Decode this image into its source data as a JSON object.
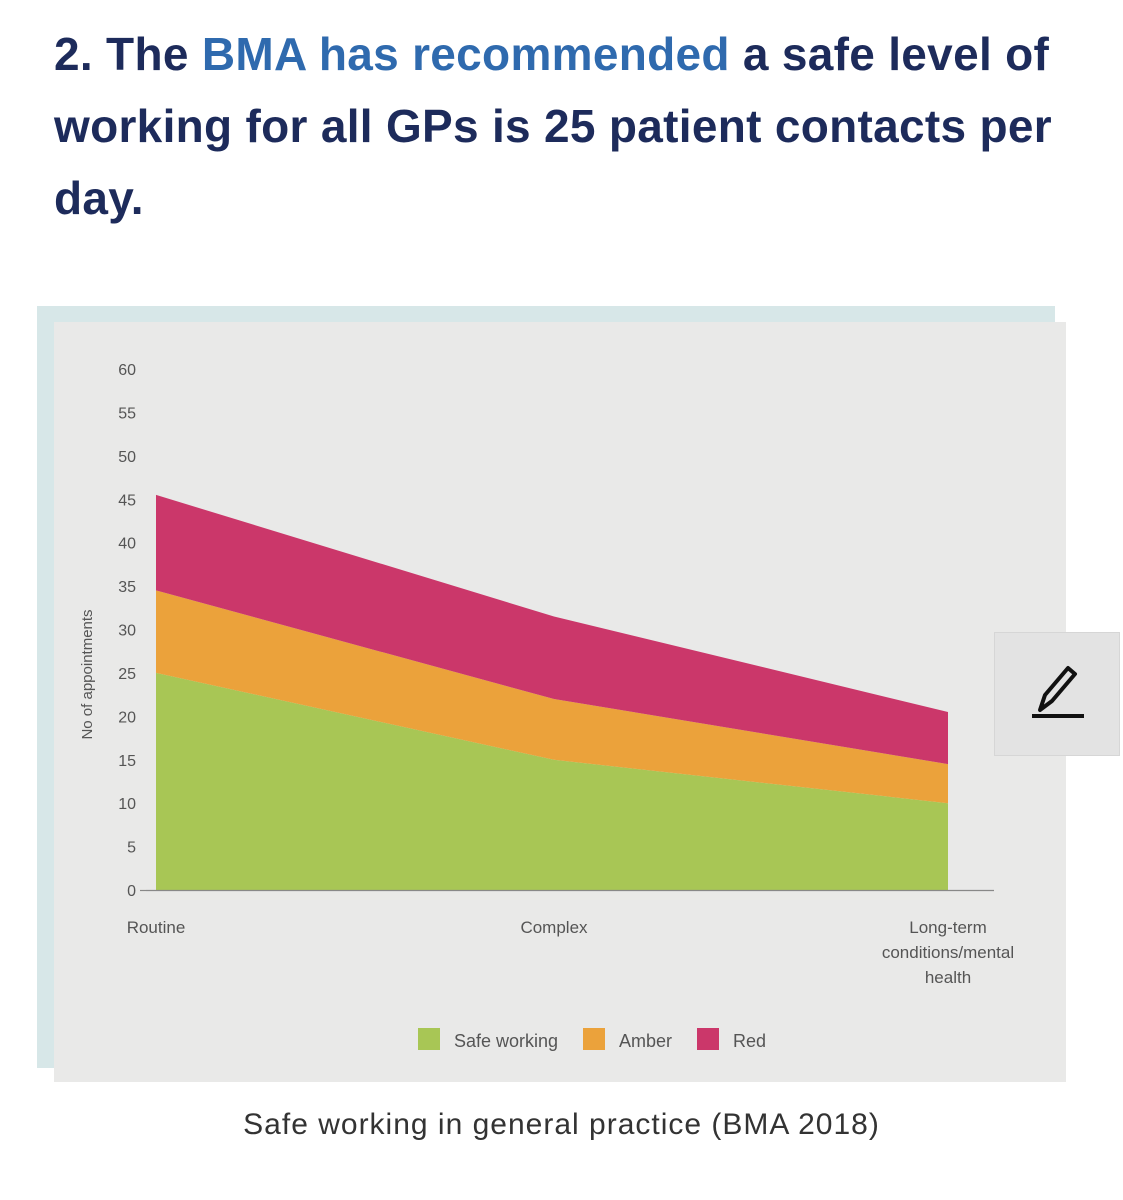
{
  "heading": {
    "prefix": "2. The ",
    "highlight": "BMA has recommended",
    "rest": " a safe level of working for all GPs is 25 patient contacts per day."
  },
  "chart_data": {
    "type": "area",
    "stacked": true,
    "categories": [
      "Routine",
      "Complex",
      "Long-term conditions/mental health"
    ],
    "x_label_lines": [
      [
        "Routine"
      ],
      [
        "Complex"
      ],
      [
        "Long-term",
        "conditions/mental",
        "health"
      ]
    ],
    "ylabel": "No of appointments",
    "ylim": [
      0,
      60
    ],
    "yticks": [
      0,
      5,
      10,
      15,
      20,
      25,
      30,
      35,
      40,
      45,
      50,
      55,
      60
    ],
    "grid": false,
    "legend_position": "bottom",
    "series": [
      {
        "name": "Safe working",
        "color": "#a8c655",
        "values": [
          25,
          15,
          10
        ]
      },
      {
        "name": "Amber",
        "color": "#eba23b",
        "values": [
          9.5,
          7,
          4.5
        ]
      },
      {
        "name": "Red",
        "color": "#cb376a",
        "values": [
          11,
          9.5,
          6
        ]
      }
    ]
  },
  "caption": "Safe working in general practice (BMA 2018)",
  "edit_button": {
    "icon": "pencil-icon"
  }
}
